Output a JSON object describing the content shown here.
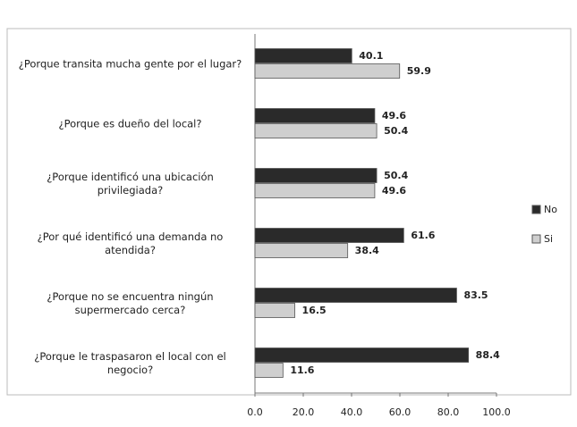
{
  "chart_data": {
    "type": "bar",
    "orientation": "horizontal",
    "categories": [
      "¿Porque transita mucha gente por el lugar?",
      "¿Porque es dueño del local?",
      "¿Porque identificó una ubicación privilegiada?",
      "¿Por qué identificó una demanda no atendida?",
      "¿Porque no se encuentra ningún supermercado cerca?",
      "¿Porque le traspasaron el local con el negocio?"
    ],
    "series": [
      {
        "name": "No",
        "color": "#2a2a2a",
        "values": [
          40.1,
          49.6,
          50.4,
          61.6,
          83.5,
          88.4
        ]
      },
      {
        "name": "Si",
        "color": "#cfcfcf",
        "values": [
          59.9,
          50.4,
          49.6,
          38.4,
          16.5,
          11.6
        ]
      }
    ],
    "xlim": [
      0,
      100
    ],
    "xticks": [
      {
        "value": 0,
        "label": "0.0"
      },
      {
        "value": 20,
        "label": "20.0"
      },
      {
        "value": 40,
        "label": "40.0"
      },
      {
        "value": 60,
        "label": "60.0"
      },
      {
        "value": 80,
        "label": "80.0"
      },
      {
        "value": 100,
        "label": "100.0"
      }
    ],
    "legend": "right"
  }
}
